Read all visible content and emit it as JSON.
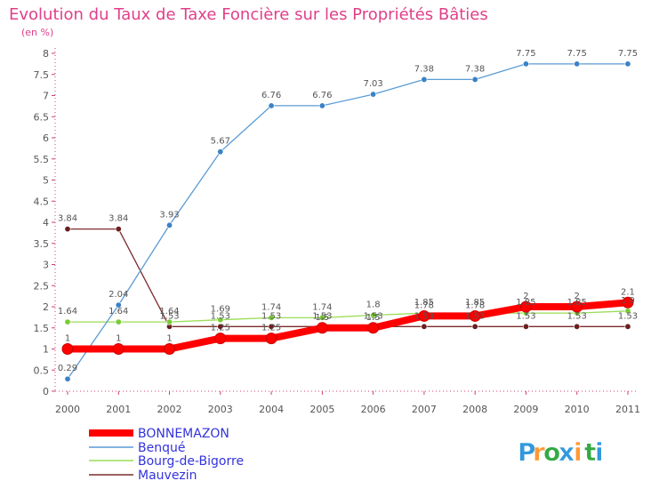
{
  "chart_data": {
    "type": "line",
    "title": "Evolution du Taux de Taxe Foncière sur les Propriétés Bâties",
    "ylabel": "(en %)",
    "xlabel": "",
    "ylim": [
      0,
      8
    ],
    "yticks": [
      "0",
      "0.5",
      "1",
      "1.5",
      "2",
      "2.5",
      "3",
      "3.5",
      "4",
      "4.5",
      "5",
      "5.5",
      "6",
      "6.5",
      "7",
      "7.5",
      "8"
    ],
    "categories": [
      "2000",
      "2001",
      "2002",
      "2003",
      "2004",
      "2005",
      "2006",
      "2007",
      "2008",
      "2009",
      "2010",
      "2011"
    ],
    "series": [
      {
        "name": "BONNEMAZON",
        "color": "#ff0000",
        "values": [
          1,
          1,
          1,
          1.25,
          1.25,
          1.5,
          1.5,
          1.78,
          1.78,
          2,
          2,
          2.1
        ],
        "labels": [
          "1",
          "1",
          "1",
          "1.25",
          "1.25",
          "1.5",
          "1.5",
          "1.78",
          "1.78",
          "2",
          "2",
          "2.1"
        ]
      },
      {
        "name": "Benqué",
        "color": "#5b9bd5",
        "values": [
          0.29,
          2.04,
          3.93,
          5.67,
          6.76,
          6.76,
          7.03,
          7.38,
          7.38,
          7.75,
          7.75,
          7.75
        ],
        "labels": [
          "0.29",
          "2.04",
          "3.93",
          "5.67",
          "6.76",
          "6.76",
          "7.03",
          "7.38",
          "7.38",
          "7.75",
          "7.75",
          "7.75"
        ]
      },
      {
        "name": "Bourg-de-Bigorre",
        "color": "#99dd55",
        "values": [
          1.64,
          1.64,
          1.64,
          1.69,
          1.74,
          1.74,
          1.8,
          1.85,
          1.85,
          1.85,
          1.85,
          1.9
        ],
        "labels": [
          "1.64",
          "1.64",
          "1.64",
          "1.69",
          "1.74",
          "1.74",
          "1.8",
          "1.85",
          "1.85",
          "1.85",
          "1.85",
          "1.9"
        ]
      },
      {
        "name": "Mauvezin",
        "color": "#7b2c2c",
        "values": [
          3.84,
          3.84,
          1.53,
          1.53,
          1.53,
          1.53,
          1.53,
          1.53,
          1.53,
          1.53,
          1.53,
          1.53
        ],
        "labels": [
          "3.84",
          "3.84",
          "1.53",
          "1.53",
          "1.53",
          "1.53",
          "1.53",
          "1.53",
          "1.53",
          "1.53",
          "1.53",
          "1.53"
        ]
      }
    ],
    "legend": "bottom-left",
    "grid": false
  },
  "brand": {
    "letters": [
      "P",
      "r",
      "o",
      "x",
      "i",
      "t",
      "i"
    ],
    "colors": [
      "#3399dd",
      "#ff9933",
      "#33aa44",
      "#3399dd",
      "#ff9933",
      "#33aa44",
      "#3399dd"
    ]
  }
}
